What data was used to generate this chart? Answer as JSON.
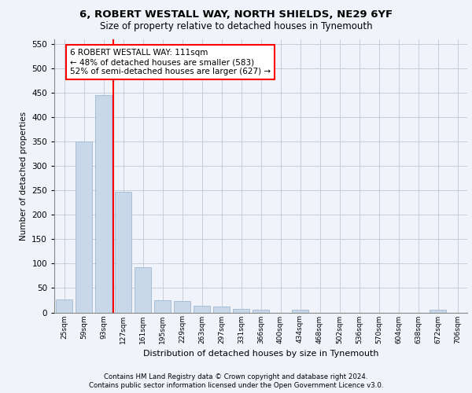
{
  "title1": "6, ROBERT WESTALL WAY, NORTH SHIELDS, NE29 6YF",
  "title2": "Size of property relative to detached houses in Tynemouth",
  "xlabel": "Distribution of detached houses by size in Tynemouth",
  "ylabel": "Number of detached properties",
  "categories": [
    "25sqm",
    "59sqm",
    "93sqm",
    "127sqm",
    "161sqm",
    "195sqm",
    "229sqm",
    "263sqm",
    "297sqm",
    "331sqm",
    "366sqm",
    "400sqm",
    "434sqm",
    "468sqm",
    "502sqm",
    "536sqm",
    "570sqm",
    "604sqm",
    "638sqm",
    "672sqm",
    "706sqm"
  ],
  "values": [
    27,
    350,
    445,
    248,
    92,
    25,
    24,
    13,
    12,
    8,
    6,
    0,
    5,
    0,
    0,
    0,
    0,
    0,
    0,
    5,
    0
  ],
  "bar_color": "#c8d8e8",
  "bar_edge_color": "#a0b8d0",
  "vline_x": 2.5,
  "vline_color": "red",
  "annotation_text": "6 ROBERT WESTALL WAY: 111sqm\n← 48% of detached houses are smaller (583)\n52% of semi-detached houses are larger (627) →",
  "annotation_box_color": "white",
  "annotation_box_edge": "red",
  "ylim": [
    0,
    560
  ],
  "yticks": [
    0,
    50,
    100,
    150,
    200,
    250,
    300,
    350,
    400,
    450,
    500,
    550
  ],
  "footer1": "Contains HM Land Registry data © Crown copyright and database right 2024.",
  "footer2": "Contains public sector information licensed under the Open Government Licence v3.0.",
  "background_color": "#f0f4fa",
  "grid_color": "#c0c8d8"
}
